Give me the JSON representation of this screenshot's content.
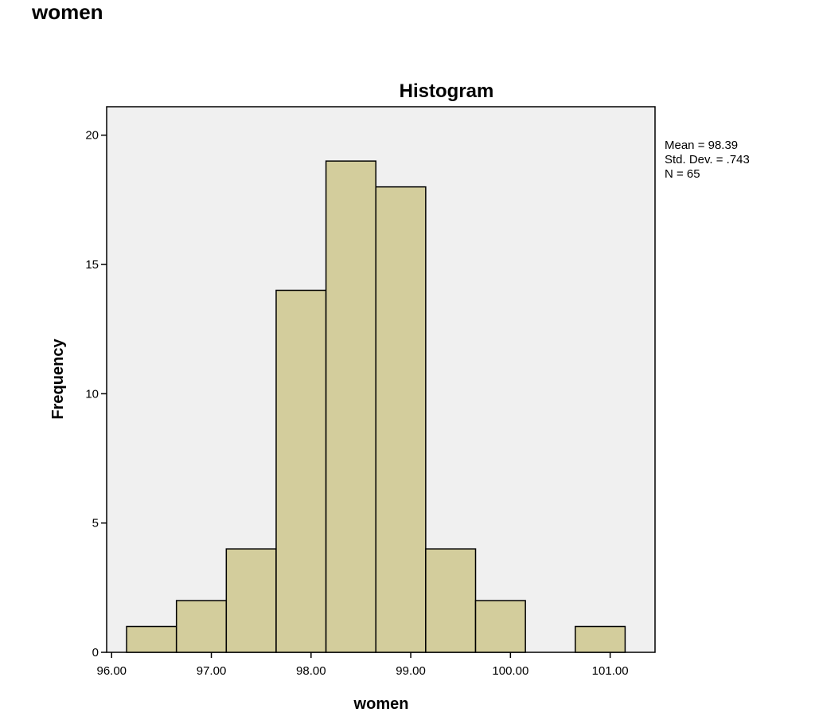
{
  "page": {
    "heading": "women"
  },
  "chart_data": {
    "type": "bar",
    "title": "Histogram",
    "xlabel": "women",
    "ylabel": "Frequency",
    "bins": [
      {
        "x0": 96.15,
        "x1": 96.65,
        "value": 1
      },
      {
        "x0": 96.65,
        "x1": 97.15,
        "value": 2
      },
      {
        "x0": 97.15,
        "x1": 97.65,
        "value": 4
      },
      {
        "x0": 97.65,
        "x1": 98.15,
        "value": 14
      },
      {
        "x0": 98.15,
        "x1": 98.65,
        "value": 19
      },
      {
        "x0": 98.65,
        "x1": 99.15,
        "value": 18
      },
      {
        "x0": 99.15,
        "x1": 99.65,
        "value": 4
      },
      {
        "x0": 99.65,
        "x1": 100.15,
        "value": 2
      },
      {
        "x0": 100.15,
        "x1": 100.65,
        "value": 0
      },
      {
        "x0": 100.65,
        "x1": 101.15,
        "value": 1
      }
    ],
    "xticks": [
      "96.00",
      "97.00",
      "98.00",
      "99.00",
      "100.00",
      "101.00"
    ],
    "xtick_values": [
      96,
      97,
      98,
      99,
      100,
      101
    ],
    "yticks": [
      "0",
      "5",
      "10",
      "15",
      "20"
    ],
    "ytick_values": [
      0,
      5,
      10,
      15,
      20
    ],
    "xlim": [
      95.95,
      101.45
    ],
    "ylim": [
      0,
      21.1
    ],
    "stats": {
      "mean": "Mean = 98.39",
      "std_dev": "Std. Dev. = .743",
      "n": "N = 65"
    },
    "colors": {
      "bar_fill": "#d3cd9c",
      "bar_stroke": "#000000",
      "plot_background": "#f0f0f0"
    },
    "grid": false
  }
}
